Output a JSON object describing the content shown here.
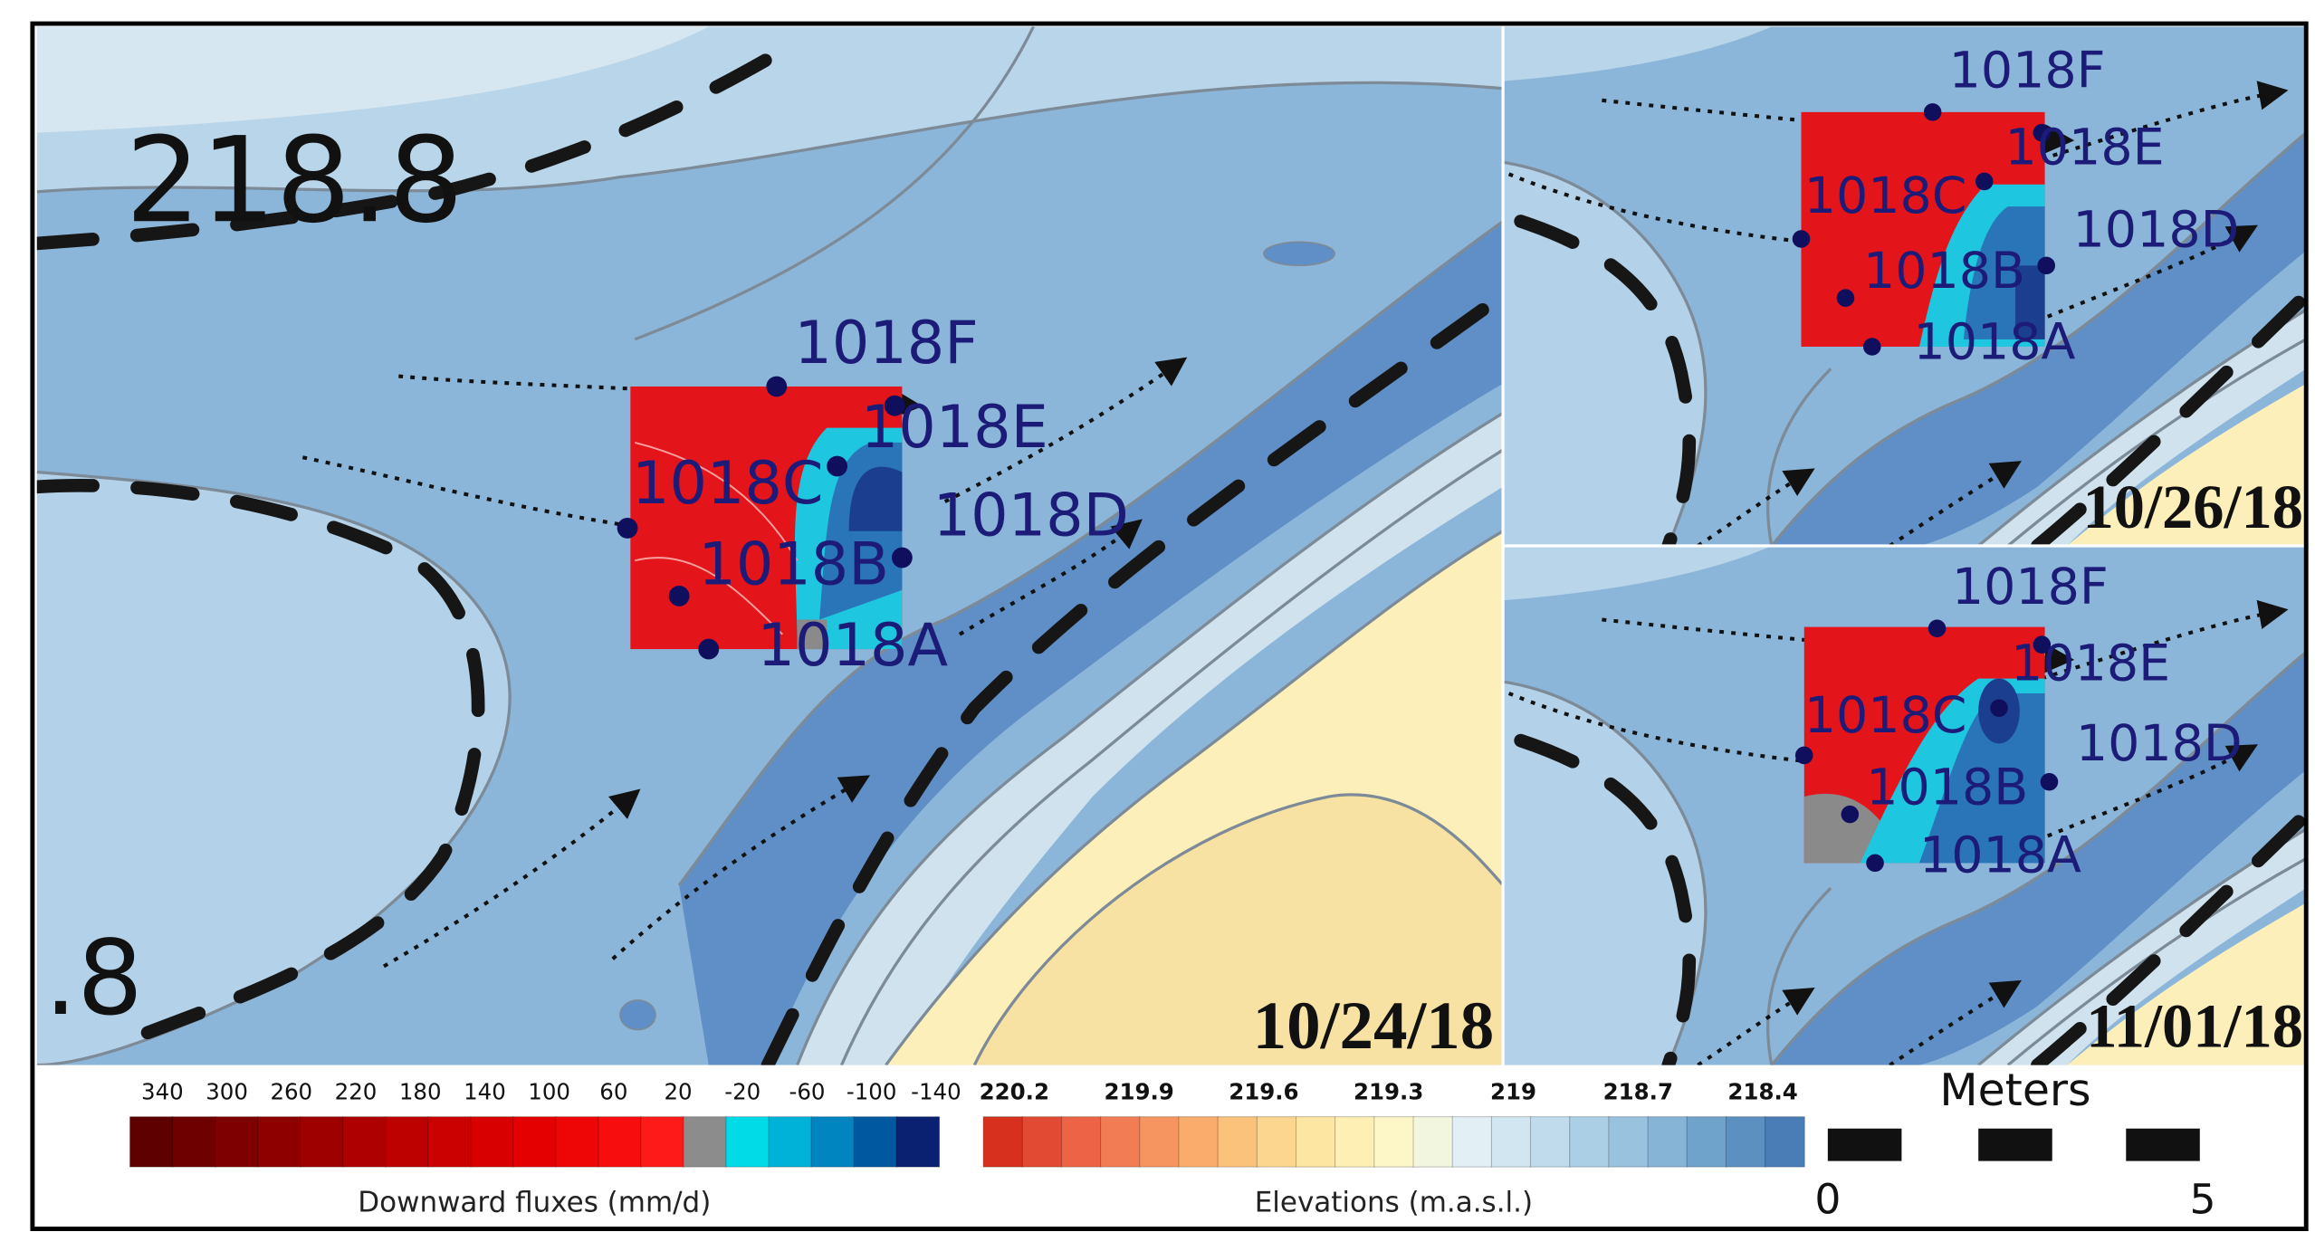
{
  "panels": [
    {
      "date": "10/24/18",
      "stations": [
        "1018F",
        "1018E",
        "1018C",
        "1018D",
        "1018B",
        "1018A"
      ],
      "contour_labels": [
        "218.8",
        ".8"
      ]
    },
    {
      "date": "10/26/18",
      "stations": [
        "1018F",
        "1018E",
        "1018C",
        "1018D",
        "1018B",
        "1018A"
      ]
    },
    {
      "date": "11/01/18",
      "stations": [
        "1018F",
        "1018E",
        "1018C",
        "1018D",
        "1018B",
        "1018A"
      ]
    }
  ],
  "legend": {
    "flux": {
      "title": "Downward fluxes (mm/d)",
      "ticks": [
        340,
        300,
        260,
        220,
        180,
        140,
        100,
        60,
        20,
        -20,
        -60,
        -100,
        -140
      ],
      "colors": [
        "#5e0000",
        "#6e0000",
        "#7e0000",
        "#8e0000",
        "#9e0000",
        "#ae0000",
        "#bd0000",
        "#cb0000",
        "#d80000",
        "#e40000",
        "#ee0505",
        "#f70d0d",
        "#ff1a1a",
        "#8c8c8c",
        "#00dbe8",
        "#00b2d8",
        "#0085c0",
        "#0058a0",
        "#0a2070"
      ]
    },
    "elevation": {
      "title": "Elevations (m.a.s.l.)",
      "ticks": [
        220.2,
        219.9,
        219.6,
        219.3,
        219,
        218.7,
        218.4
      ],
      "colors": [
        "#d7301f",
        "#e34a33",
        "#ec6445",
        "#f27d55",
        "#f6955f",
        "#f9ac6b",
        "#fbc27b",
        "#fcd68e",
        "#fde5a2",
        "#fef0b5",
        "#fdf6c6",
        "#f2f6df",
        "#e2eff5",
        "#d1e6f1",
        "#bfdbec",
        "#abcfe5",
        "#98c2de",
        "#85b4d6",
        "#70a3cc",
        "#5b90c1",
        "#4a7db5"
      ]
    },
    "scale": {
      "title": "Meters",
      "ticks": [
        0,
        5
      ]
    }
  }
}
